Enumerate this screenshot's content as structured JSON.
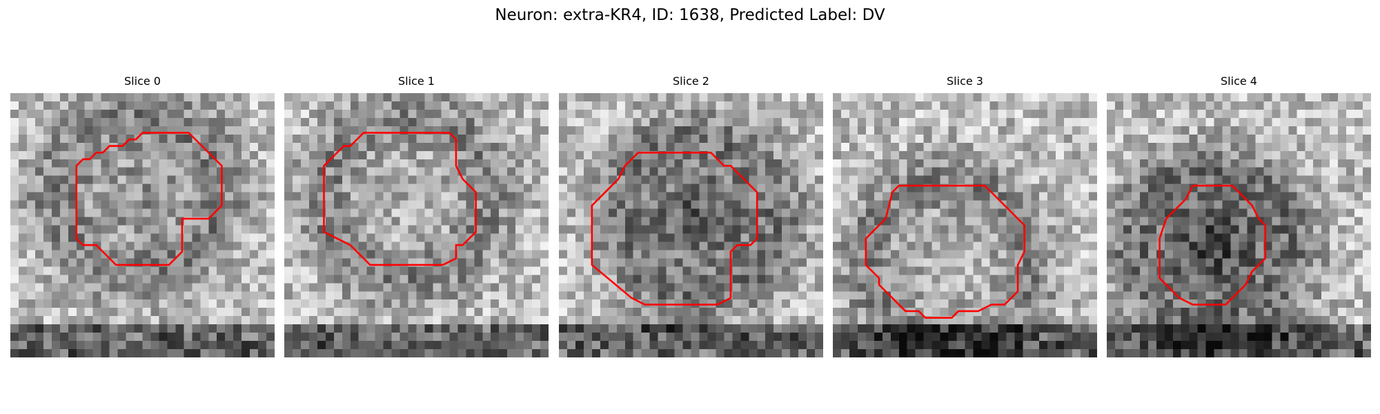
{
  "figure": {
    "title": "Neuron: extra-KR4, ID: 1638, Predicted Label: DV",
    "contour_color": "#ff0000",
    "colormap": "gray",
    "panels": [
      {
        "title": "Slice 0",
        "seed": 11,
        "dark_center": 0.35,
        "contour": [
          [
            20,
            6
          ],
          [
            27,
            6
          ],
          [
            32,
            11
          ],
          [
            32,
            17
          ],
          [
            30,
            19
          ],
          [
            26,
            19
          ],
          [
            26,
            24
          ],
          [
            24,
            26
          ],
          [
            16,
            26
          ],
          [
            14,
            24
          ],
          [
            13,
            23
          ],
          [
            11,
            23
          ],
          [
            10,
            22
          ],
          [
            10,
            11
          ],
          [
            11,
            10
          ],
          [
            12,
            10
          ],
          [
            13,
            9
          ],
          [
            14,
            9
          ],
          [
            15,
            8
          ],
          [
            17,
            8
          ],
          [
            18,
            7
          ],
          [
            19,
            7
          ]
        ]
      },
      {
        "title": "Slice 1",
        "seed": 23,
        "dark_center": 0.1,
        "contour": [
          [
            12,
            6
          ],
          [
            25,
            6
          ],
          [
            26,
            7
          ],
          [
            26,
            11
          ],
          [
            27,
            13
          ],
          [
            28,
            14
          ],
          [
            29,
            15
          ],
          [
            29,
            21
          ],
          [
            27,
            23
          ],
          [
            26,
            23
          ],
          [
            26,
            25
          ],
          [
            24,
            26
          ],
          [
            13,
            26
          ],
          [
            10,
            23
          ],
          [
            8,
            22
          ],
          [
            6,
            21
          ],
          [
            6,
            11
          ],
          [
            7,
            10
          ],
          [
            8,
            9
          ],
          [
            9,
            8
          ],
          [
            10,
            8
          ],
          [
            11,
            7
          ]
        ]
      },
      {
        "title": "Slice 2",
        "seed": 37,
        "dark_center": 0.8,
        "contour": [
          [
            12,
            9
          ],
          [
            23,
            9
          ],
          [
            24,
            10
          ],
          [
            25,
            11
          ],
          [
            26,
            11
          ],
          [
            27,
            12
          ],
          [
            28,
            13
          ],
          [
            29,
            14
          ],
          [
            30,
            15
          ],
          [
            30,
            22
          ],
          [
            29,
            23
          ],
          [
            27,
            23
          ],
          [
            26,
            24
          ],
          [
            26,
            31
          ],
          [
            24,
            32
          ],
          [
            13,
            32
          ],
          [
            11,
            31
          ],
          [
            5,
            26
          ],
          [
            5,
            17
          ],
          [
            9,
            13
          ],
          [
            10,
            11
          ],
          [
            11,
            10
          ]
        ]
      },
      {
        "title": "Slice 3",
        "seed": 51,
        "dark_center": 0.15,
        "contour": [
          [
            10,
            14
          ],
          [
            23,
            14
          ],
          [
            24,
            15
          ],
          [
            25,
            16
          ],
          [
            26,
            17
          ],
          [
            27,
            18
          ],
          [
            28,
            19
          ],
          [
            29,
            20
          ],
          [
            29,
            24
          ],
          [
            28,
            26
          ],
          [
            28,
            30
          ],
          [
            27,
            31
          ],
          [
            26,
            32
          ],
          [
            24,
            32
          ],
          [
            22,
            33
          ],
          [
            19,
            33
          ],
          [
            18,
            34
          ],
          [
            14,
            34
          ],
          [
            13,
            33
          ],
          [
            11,
            33
          ],
          [
            10,
            32
          ],
          [
            9,
            31
          ],
          [
            8,
            30
          ],
          [
            7,
            29
          ],
          [
            7,
            28
          ],
          [
            6,
            27
          ],
          [
            5,
            26
          ],
          [
            5,
            22
          ],
          [
            6,
            21
          ],
          [
            7,
            20
          ],
          [
            8,
            19
          ],
          [
            9,
            15
          ]
        ]
      },
      {
        "title": "Slice 4",
        "seed": 67,
        "dark_center": 1.0,
        "contour": [
          [
            13,
            14
          ],
          [
            19,
            14
          ],
          [
            20,
            15
          ],
          [
            22,
            17
          ],
          [
            23,
            19
          ],
          [
            24,
            20
          ],
          [
            24,
            25
          ],
          [
            22,
            27
          ],
          [
            21,
            29
          ],
          [
            20,
            30
          ],
          [
            18,
            32
          ],
          [
            13,
            32
          ],
          [
            11,
            31
          ],
          [
            10,
            30
          ],
          [
            9,
            29
          ],
          [
            8,
            28
          ],
          [
            8,
            22
          ],
          [
            9,
            19
          ],
          [
            10,
            18
          ],
          [
            11,
            17
          ],
          [
            12,
            16
          ]
        ]
      }
    ]
  }
}
